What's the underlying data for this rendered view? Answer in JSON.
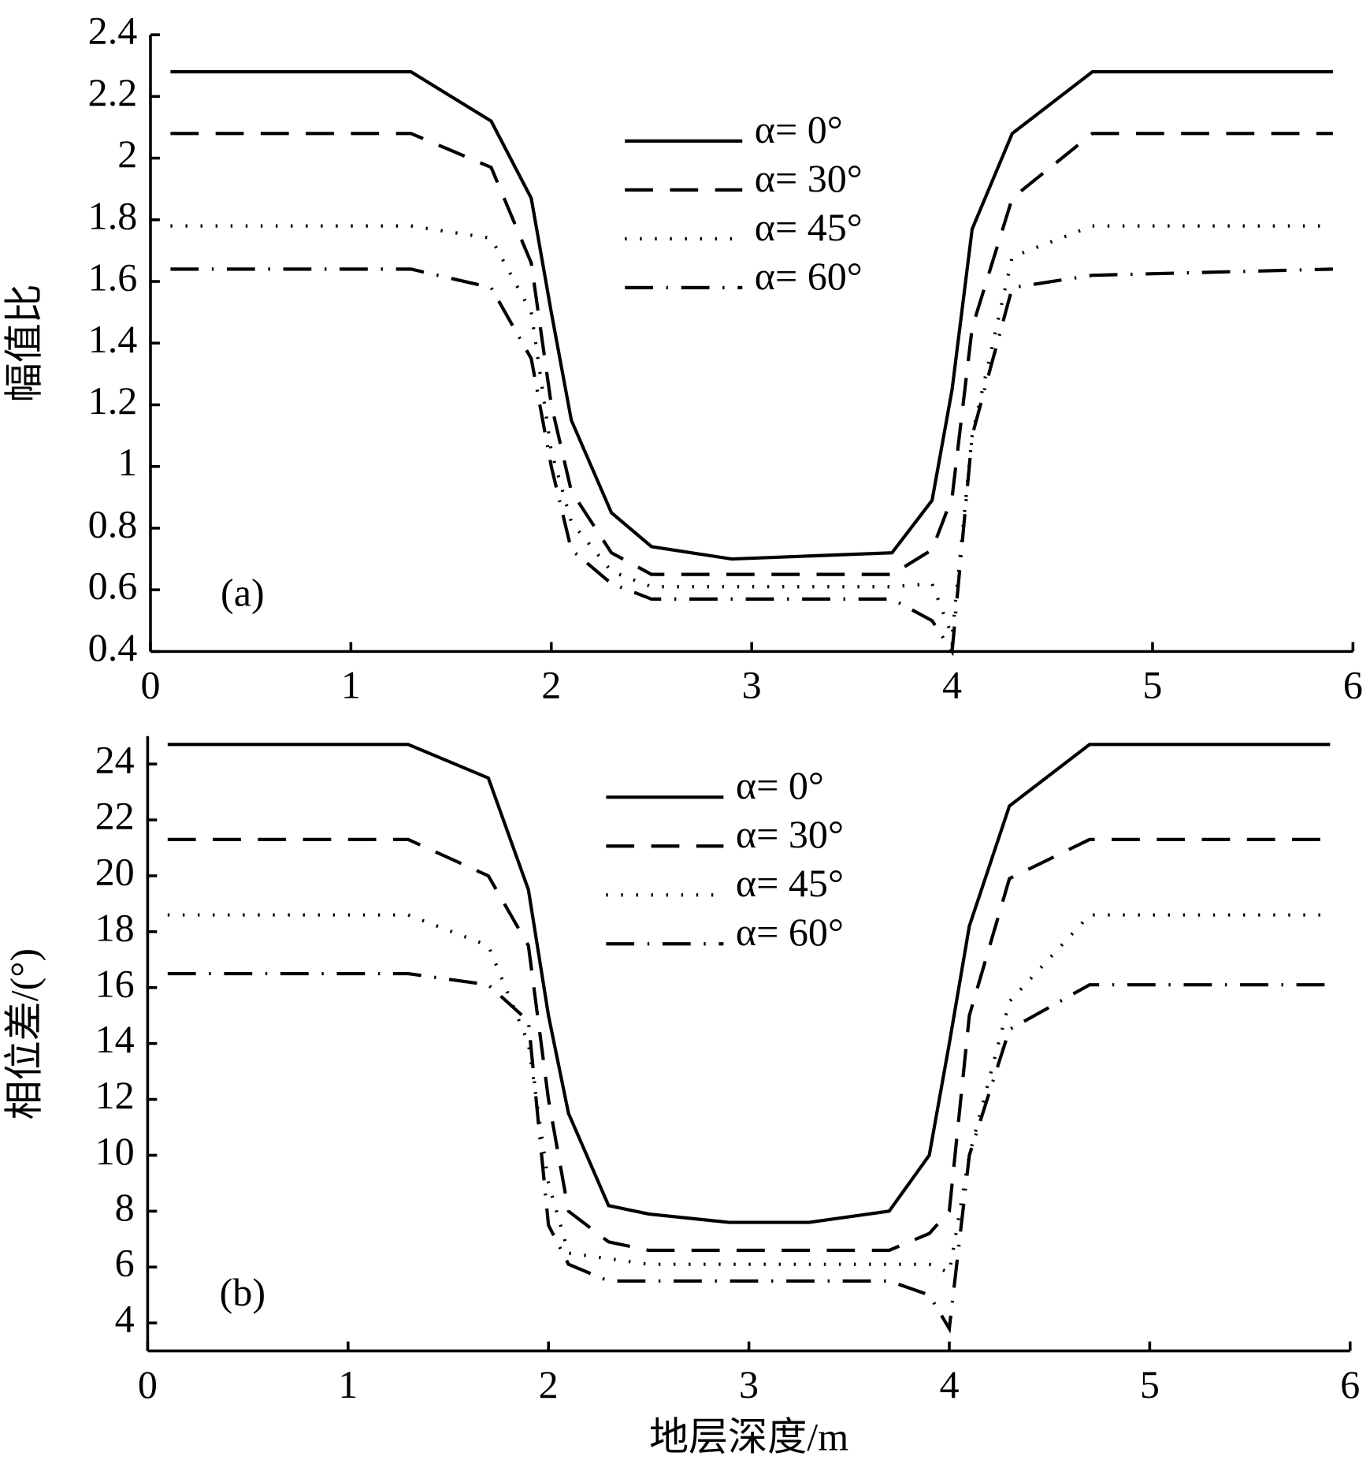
{
  "chart_data": [
    {
      "type": "line",
      "panel_label": "(a)",
      "ylabel": "幅值比",
      "x": [
        0.1,
        1.3,
        1.7,
        1.9,
        2.0,
        2.1,
        2.3,
        2.5,
        2.9,
        3.3,
        3.7,
        3.9,
        4.0,
        4.1,
        4.3,
        4.7,
        5.9
      ],
      "xlim": [
        0,
        6
      ],
      "xticks": [
        0,
        1,
        2,
        3,
        4,
        5,
        6
      ],
      "ylim": [
        0.4,
        2.4
      ],
      "yticks": [
        0.4,
        0.6,
        0.8,
        1,
        1.2,
        1.4,
        1.6,
        1.8,
        2,
        2.2,
        2.4
      ],
      "series": [
        {
          "name": "α= 0°",
          "color": "#000000",
          "values": [
            2.28,
            2.28,
            2.12,
            1.87,
            1.5,
            1.15,
            0.85,
            0.74,
            0.7,
            0.71,
            0.72,
            0.89,
            1.25,
            1.77,
            2.08,
            2.28,
            2.28
          ]
        },
        {
          "name": "α= 30°",
          "color": "#000000",
          "values": [
            2.08,
            2.08,
            1.97,
            1.66,
            1.2,
            0.92,
            0.72,
            0.65,
            0.65,
            0.65,
            0.65,
            0.73,
            0.9,
            1.45,
            1.87,
            2.08,
            2.08
          ]
        },
        {
          "name": "α= 45°",
          "color": "#000000",
          "values": [
            1.78,
            1.78,
            1.74,
            1.5,
            1.05,
            0.82,
            0.66,
            0.61,
            0.61,
            0.61,
            0.61,
            0.62,
            0.45,
            1.1,
            1.68,
            1.78,
            1.78
          ]
        },
        {
          "name": "α= 60°",
          "color": "#000000",
          "values": [
            1.64,
            1.64,
            1.58,
            1.35,
            1.0,
            0.73,
            0.62,
            0.57,
            0.57,
            0.57,
            0.57,
            0.5,
            0.4,
            1.1,
            1.58,
            1.62,
            1.64
          ]
        }
      ]
    },
    {
      "type": "line",
      "panel_label": "(b)",
      "ylabel": "相位差/(°)",
      "xlabel": "地层深度/m",
      "x": [
        0.1,
        1.3,
        1.7,
        1.9,
        2.0,
        2.1,
        2.3,
        2.5,
        2.9,
        3.3,
        3.7,
        3.9,
        4.0,
        4.1,
        4.3,
        4.7,
        5.9
      ],
      "xlim": [
        0,
        6
      ],
      "xticks": [
        0,
        1,
        2,
        3,
        4,
        5,
        6
      ],
      "ylim": [
        3,
        25
      ],
      "yticks": [
        4,
        6,
        8,
        10,
        12,
        14,
        16,
        18,
        20,
        22,
        24
      ],
      "series": [
        {
          "name": "α= 0°",
          "color": "#000000",
          "values": [
            24.7,
            24.7,
            23.5,
            19.5,
            15,
            11.5,
            8.2,
            7.9,
            7.6,
            7.6,
            8.0,
            10,
            14,
            18.2,
            22.5,
            24.7,
            24.7
          ]
        },
        {
          "name": "α= 30°",
          "color": "#000000",
          "values": [
            21.3,
            21.3,
            20,
            17.5,
            12,
            8,
            6.9,
            6.6,
            6.6,
            6.6,
            6.6,
            7.2,
            8,
            15,
            19.9,
            21.3,
            21.3
          ]
        },
        {
          "name": "α= 45°",
          "color": "#000000",
          "values": [
            18.6,
            18.6,
            17.5,
            14,
            9,
            6.5,
            6.3,
            6.1,
            6.1,
            6.1,
            6.1,
            6.1,
            5.8,
            10,
            15.5,
            18.6,
            18.6
          ]
        },
        {
          "name": "α= 60°",
          "color": "#000000",
          "values": [
            16.5,
            16.5,
            16.1,
            14.8,
            7.5,
            6.1,
            5.5,
            5.5,
            5.5,
            5.5,
            5.5,
            5.0,
            3.8,
            10,
            14.5,
            16.1,
            16.1
          ]
        }
      ]
    }
  ]
}
